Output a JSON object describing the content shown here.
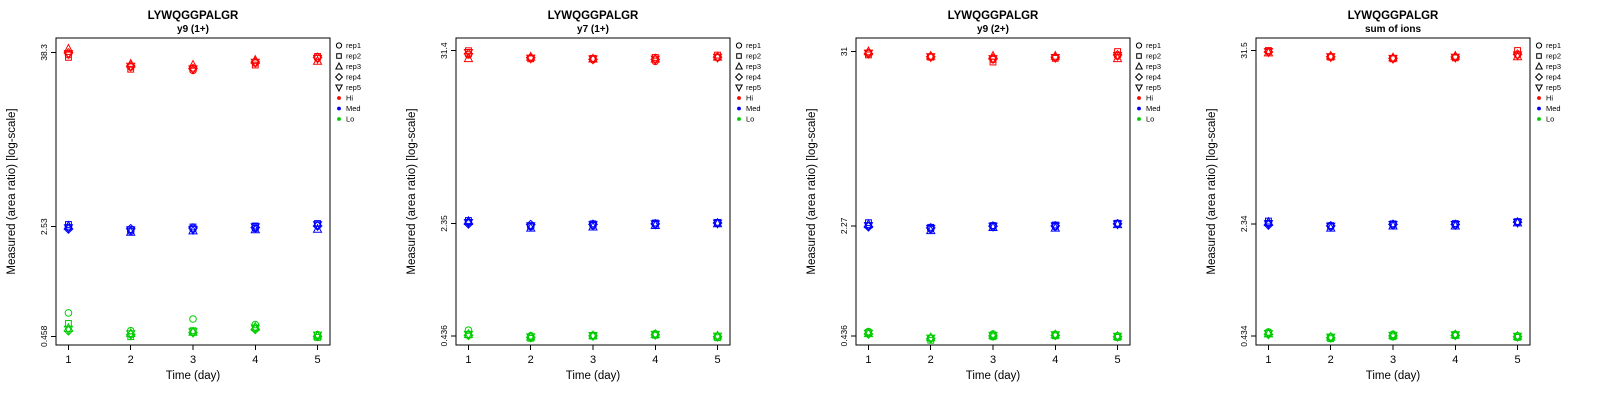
{
  "page": {
    "background": "#FFFFFF"
  },
  "legend": {
    "rep_symbols": [
      "circle",
      "square",
      "triangle-up",
      "diamond",
      "triangle-down"
    ],
    "items": [
      {
        "label": "rep1",
        "symbol": "circle",
        "color": "#000000"
      },
      {
        "label": "rep2",
        "symbol": "square",
        "color": "#000000"
      },
      {
        "label": "rep3",
        "symbol": "triangle-up",
        "color": "#000000"
      },
      {
        "label": "rep4",
        "symbol": "diamond",
        "color": "#000000"
      },
      {
        "label": "rep5",
        "symbol": "triangle-down",
        "color": "#000000"
      },
      {
        "label": "Hi",
        "symbol": "dot",
        "color": "#FF0000"
      },
      {
        "label": "Med",
        "symbol": "dot",
        "color": "#0000FF"
      },
      {
        "label": "Lo",
        "symbol": "dot",
        "color": "#00CD00"
      }
    ]
  },
  "chart_data": [
    {
      "type": "scatter",
      "title": "LYWQGGPALGR",
      "subtitle": "y9 (1+)",
      "xlabel": "Time (day)",
      "ylabel": "Measured (area ratio) [log-scale]",
      "x": [
        1,
        2,
        3,
        4,
        5
      ],
      "xlim": [
        0.8,
        5.2
      ],
      "ylim": [
        0.4,
        48
      ],
      "y_ticks": [
        38.3,
        2.53,
        0.458
      ],
      "log_scale": true,
      "grid": false,
      "legend_position": "right",
      "series": [
        {
          "name": "Hi",
          "color": "#FF0000",
          "values": [
            [
              37.0,
              35.5,
              40.5,
              38.0,
              37.5
            ],
            [
              30.5,
              29.5,
              32.0,
              31.0,
              30.8
            ],
            [
              29.0,
              30.0,
              31.5,
              29.8,
              29.5
            ],
            [
              32.5,
              31.5,
              34.0,
              33.0,
              32.8
            ],
            [
              35.0,
              36.0,
              33.5,
              35.5,
              34.8
            ]
          ]
        },
        {
          "name": "Med",
          "color": "#0000FF",
          "values": [
            [
              2.5,
              2.62,
              2.56,
              2.44,
              2.48
            ],
            [
              2.36,
              2.42,
              2.33,
              2.45,
              2.4
            ],
            [
              2.44,
              2.52,
              2.38,
              2.48,
              2.42
            ],
            [
              2.46,
              2.56,
              2.42,
              2.5,
              2.52
            ],
            [
              2.58,
              2.66,
              2.44,
              2.56,
              2.6
            ]
          ]
        },
        {
          "name": "Lo",
          "color": "#00CD00",
          "values": [
            [
              0.66,
              0.56,
              0.52,
              0.5,
              0.51
            ],
            [
              0.5,
              0.455,
              0.48,
              0.47,
              0.475
            ],
            [
              0.6,
              0.5,
              0.49,
              0.485,
              0.49
            ],
            [
              0.55,
              0.52,
              0.53,
              0.51,
              0.52
            ],
            [
              0.47,
              0.45,
              0.462,
              0.458,
              0.465
            ]
          ]
        }
      ]
    },
    {
      "type": "scatter",
      "title": "LYWQGGPALGR",
      "subtitle": "y7 (1+)",
      "xlabel": "Time (day)",
      "ylabel": "Measured (area ratio) [log-scale]",
      "x": [
        1,
        2,
        3,
        4,
        5
      ],
      "xlim": [
        0.8,
        5.2
      ],
      "ylim": [
        0.38,
        38
      ],
      "y_ticks": [
        31.4,
        2.35,
        0.436
      ],
      "log_scale": true,
      "grid": false,
      "legend_position": "right",
      "series": [
        {
          "name": "Hi",
          "color": "#FF0000",
          "values": [
            [
              29.5,
              31.4,
              28.0,
              30.0,
              30.5
            ],
            [
              28.2,
              27.8,
              28.6,
              28.3,
              28.0
            ],
            [
              27.5,
              28.0,
              27.8,
              27.6,
              27.7
            ],
            [
              26.8,
              28.4,
              27.8,
              27.5,
              27.6
            ],
            [
              28.3,
              29.4,
              28.6,
              28.5,
              28.4
            ]
          ]
        },
        {
          "name": "Med",
          "color": "#0000FF",
          "values": [
            [
              2.4,
              2.46,
              2.43,
              2.34,
              2.38
            ],
            [
              2.24,
              2.28,
              2.2,
              2.31,
              2.26
            ],
            [
              2.28,
              2.34,
              2.24,
              2.32,
              2.3
            ],
            [
              2.32,
              2.37,
              2.29,
              2.34,
              2.33
            ],
            [
              2.36,
              2.39,
              2.35,
              2.37,
              2.36
            ]
          ]
        },
        {
          "name": "Lo",
          "color": "#00CD00",
          "values": [
            [
              0.475,
              0.442,
              0.447,
              0.44,
              0.444
            ],
            [
              0.436,
              0.42,
              0.43,
              0.426,
              0.428
            ],
            [
              0.44,
              0.434,
              0.438,
              0.436,
              0.437
            ],
            [
              0.45,
              0.44,
              0.446,
              0.443,
              0.444
            ],
            [
              0.432,
              0.424,
              0.436,
              0.43,
              0.433
            ]
          ]
        }
      ]
    },
    {
      "type": "scatter",
      "title": "LYWQGGPALGR",
      "subtitle": "y9 (2+)",
      "xlabel": "Time (day)",
      "ylabel": "Measured (area ratio) [log-scale]",
      "x": [
        1,
        2,
        3,
        4,
        5
      ],
      "xlim": [
        0.8,
        5.2
      ],
      "ylim": [
        0.38,
        38
      ],
      "y_ticks": [
        31,
        2.27,
        0.436
      ],
      "log_scale": true,
      "grid": false,
      "legend_position": "right",
      "series": [
        {
          "name": "Hi",
          "color": "#FF0000",
          "values": [
            [
              30.5,
              29.5,
              31.0,
              30.0,
              30.2
            ],
            [
              28.8,
              28.5,
              29.0,
              28.7,
              28.6
            ],
            [
              27.5,
              26.5,
              29.0,
              28.0,
              27.8
            ],
            [
              28.4,
              28.0,
              29.0,
              28.5,
              28.3
            ],
            [
              29.0,
              31.0,
              28.0,
              29.5,
              29.2
            ]
          ]
        },
        {
          "name": "Med",
          "color": "#0000FF",
          "values": [
            [
              2.28,
              2.38,
              2.32,
              2.24,
              2.27
            ],
            [
              2.16,
              2.22,
              2.12,
              2.2,
              2.18
            ],
            [
              2.24,
              2.28,
              2.22,
              2.26,
              2.25
            ],
            [
              2.24,
              2.3,
              2.2,
              2.27,
              2.26
            ],
            [
              2.34,
              2.36,
              2.32,
              2.34,
              2.33
            ]
          ]
        },
        {
          "name": "Lo",
          "color": "#00CD00",
          "values": [
            [
              0.465,
              0.458,
              0.452,
              0.448,
              0.452
            ],
            [
              0.42,
              0.408,
              0.425,
              0.418,
              0.42
            ],
            [
              0.448,
              0.43,
              0.44,
              0.436,
              0.438
            ],
            [
              0.446,
              0.436,
              0.444,
              0.44,
              0.442
            ],
            [
              0.436,
              0.426,
              0.434,
              0.43,
              0.432
            ]
          ]
        }
      ]
    },
    {
      "type": "scatter",
      "title": "LYWQGGPALGR",
      "subtitle": "sum of ions",
      "xlabel": "Time (day)",
      "ylabel": "Measured (area ratio) [log-scale]",
      "x": [
        1,
        2,
        3,
        4,
        5
      ],
      "xlim": [
        0.8,
        5.2
      ],
      "ylim": [
        0.38,
        38
      ],
      "y_ticks": [
        31.5,
        2.34,
        0.434
      ],
      "log_scale": true,
      "grid": false,
      "legend_position": "right",
      "series": [
        {
          "name": "Hi",
          "color": "#FF0000",
          "values": [
            [
              31.0,
              31.5,
              30.5,
              30.8,
              30.9
            ],
            [
              28.8,
              28.5,
              29.0,
              28.7,
              28.6
            ],
            [
              28.0,
              27.8,
              28.3,
              28.0,
              27.9
            ],
            [
              28.5,
              28.2,
              29.0,
              28.6,
              28.4
            ],
            [
              29.5,
              31.5,
              28.8,
              29.8,
              29.4
            ]
          ]
        },
        {
          "name": "Med",
          "color": "#0000FF",
          "values": [
            [
              2.36,
              2.44,
              2.4,
              2.3,
              2.34
            ],
            [
              2.24,
              2.28,
              2.2,
              2.27,
              2.25
            ],
            [
              2.3,
              2.34,
              2.27,
              2.32,
              2.31
            ],
            [
              2.3,
              2.35,
              2.27,
              2.32,
              2.31
            ],
            [
              2.4,
              2.42,
              2.38,
              2.4,
              2.39
            ]
          ]
        },
        {
          "name": "Lo",
          "color": "#00CD00",
          "values": [
            [
              0.462,
              0.455,
              0.45,
              0.446,
              0.45
            ],
            [
              0.43,
              0.418,
              0.428,
              0.424,
              0.426
            ],
            [
              0.446,
              0.43,
              0.44,
              0.436,
              0.438
            ],
            [
              0.446,
              0.438,
              0.444,
              0.44,
              0.442
            ],
            [
              0.436,
              0.426,
              0.434,
              0.43,
              0.432
            ]
          ]
        }
      ]
    }
  ]
}
